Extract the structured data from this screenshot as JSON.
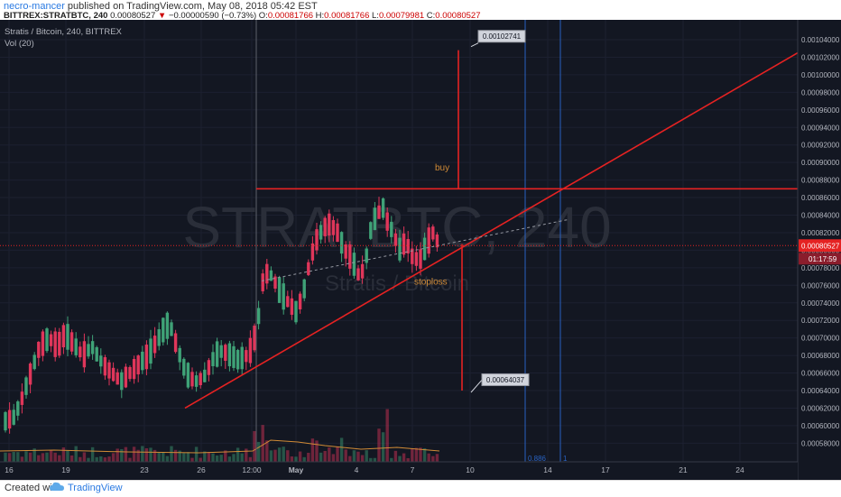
{
  "header": {
    "author": "necro-mancer",
    "published_text": "published on TradingView.com, May 08, 2018 05:42 EST",
    "symbol": "BITTREX:STRATBTC, 240",
    "last": "0.00080527",
    "change": "−0.00000590 (−0.73%)",
    "o_label": "O:",
    "o_value": "0.00081766",
    "h_label": "H:",
    "h_value": "0.00081766",
    "l_label": "L:",
    "l_value": "0.00079981",
    "c_label": "C:",
    "c_value": "0.00080527"
  },
  "legend": {
    "title": "Stratis / Bitcoin, 240, BITTREX",
    "vol": "Vol (20)"
  },
  "watermark": {
    "main": "STRATBTC, 240",
    "sub": "Stratis / Bitcoin"
  },
  "footer": {
    "created_with": "Created with",
    "brand": "TradingView"
  },
  "colors": {
    "background": "#131722",
    "up": "#3fa277",
    "down": "#e0365a",
    "annotation": "#e52222",
    "vline_blue": "#2962c2",
    "ma": "#d18b36",
    "text_axis": "#b2b5be"
  },
  "chart_data": {
    "type": "candlestick",
    "title": "Stratis / Bitcoin, 240, BITTREX",
    "y_ticks": [
      "0.00104000",
      "0.00102000",
      "0.00100000",
      "0.00098000",
      "0.00096000",
      "0.00094000",
      "0.00092000",
      "0.00090000",
      "0.00088000",
      "0.00086000",
      "0.00084000",
      "0.00082000",
      "0.00080000",
      "0.00078000",
      "0.00076000",
      "0.00074000",
      "0.00072000",
      "0.00070000",
      "0.00068000",
      "0.00066000",
      "0.00064000",
      "0.00062000",
      "0.00060000",
      "0.00058000"
    ],
    "ylim": [
      0.00057,
      0.00106
    ],
    "x_tick_labels": [
      "16",
      "19",
      "23",
      "26",
      "12:00",
      "May",
      "4",
      "7",
      "10",
      "14",
      "17",
      "21",
      "24"
    ],
    "last_price": "0.00080527",
    "countdown": "01:17:59",
    "annotations": {
      "buy_label": "buy",
      "stoploss_label": "stoploss",
      "target_callout": "0.00102741",
      "low_callout": "0.00064037",
      "fib_label_a": "0.886",
      "fib_label_b": "1"
    },
    "candles_summary": {
      "period_start": "16",
      "period_end": "7",
      "approx_low": 0.0006,
      "approx_high": 0.000855,
      "last_close": 0.00080527
    },
    "lines": {
      "horizontal_resistance": 0.00087,
      "ascending_support": [
        [
          0.00062,
          "start"
        ],
        [
          0.00103,
          "end"
        ]
      ]
    }
  }
}
